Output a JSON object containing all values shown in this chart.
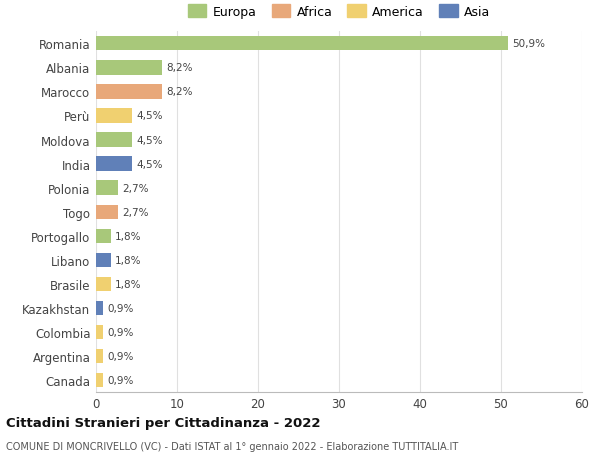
{
  "categories": [
    "Romania",
    "Albania",
    "Marocco",
    "Perù",
    "Moldova",
    "India",
    "Polonia",
    "Togo",
    "Portogallo",
    "Libano",
    "Brasile",
    "Kazakhstan",
    "Colombia",
    "Argentina",
    "Canada"
  ],
  "values": [
    50.9,
    8.2,
    8.2,
    4.5,
    4.5,
    4.5,
    2.7,
    2.7,
    1.8,
    1.8,
    1.8,
    0.9,
    0.9,
    0.9,
    0.9
  ],
  "labels": [
    "50,9%",
    "8,2%",
    "8,2%",
    "4,5%",
    "4,5%",
    "4,5%",
    "2,7%",
    "2,7%",
    "1,8%",
    "1,8%",
    "1,8%",
    "0,9%",
    "0,9%",
    "0,9%",
    "0,9%"
  ],
  "colors": [
    "#a8c87a",
    "#a8c87a",
    "#e8a87a",
    "#f0d070",
    "#a8c87a",
    "#6080b8",
    "#a8c87a",
    "#e8a87a",
    "#a8c87a",
    "#6080b8",
    "#f0d070",
    "#6080b8",
    "#f0d070",
    "#f0d070",
    "#f0d070"
  ],
  "legend_labels": [
    "Europa",
    "Africa",
    "America",
    "Asia"
  ],
  "legend_colors": [
    "#a8c87a",
    "#e8a87a",
    "#f0d070",
    "#6080b8"
  ],
  "title": "Cittadini Stranieri per Cittadinanza - 2022",
  "subtitle": "COMUNE DI MONCRIVELLO (VC) - Dati ISTAT al 1° gennaio 2022 - Elaborazione TUTTITALIA.IT",
  "xlim": [
    0,
    60
  ],
  "xticks": [
    0,
    10,
    20,
    30,
    40,
    50,
    60
  ],
  "background_color": "#ffffff",
  "grid_color": "#e0e0e0",
  "bar_height": 0.6
}
